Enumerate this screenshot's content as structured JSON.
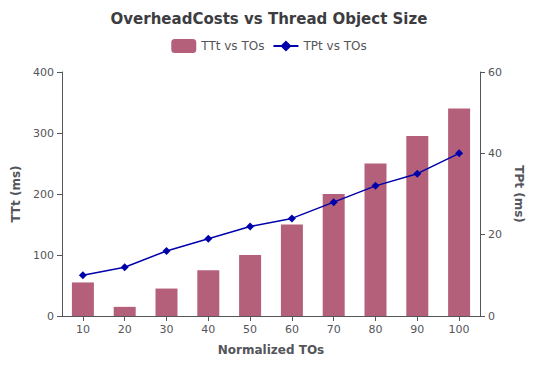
{
  "chart_data": {
    "type": "bar",
    "title": "OverheadCosts vs Thread Object Size",
    "xlabel": "Normalized TOs",
    "ylabel": "TTt (ms)",
    "y2label": "TPt (ms)",
    "x": [
      10,
      20,
      30,
      40,
      50,
      60,
      70,
      80,
      90,
      100
    ],
    "xlim": [
      5,
      105
    ],
    "xticks": [
      10,
      20,
      30,
      40,
      50,
      60,
      70,
      80,
      90,
      100
    ],
    "ylim": [
      0,
      400
    ],
    "yticks": [
      0,
      100,
      200,
      300,
      400
    ],
    "y2lim": [
      0,
      60
    ],
    "y2ticks": [
      0,
      20,
      40,
      60
    ],
    "grid": false,
    "legend": "top",
    "series": [
      {
        "name": "TTt vs TOs",
        "type": "bar",
        "color": "#b5607a",
        "values": [
          55,
          15,
          45,
          75,
          100,
          150,
          200,
          250,
          295,
          340
        ]
      },
      {
        "name": "TPt vs TOs",
        "type": "line",
        "color": "#0000aa",
        "marker": "diamond",
        "axis": "y2",
        "values": [
          10,
          12,
          16,
          19,
          22,
          24,
          28,
          32,
          35,
          40
        ]
      }
    ]
  }
}
